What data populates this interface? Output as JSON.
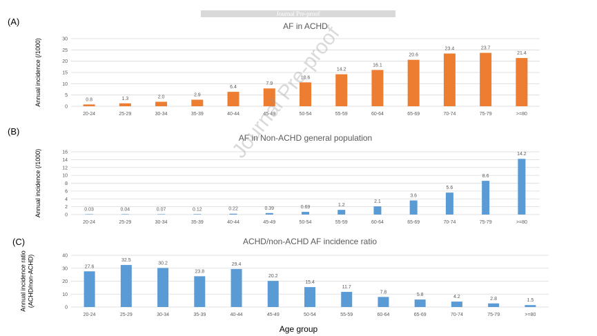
{
  "banner_text": "Journal Pre-proof",
  "watermark_text": "Journal Pre-proof",
  "x_axis_title": "Age group",
  "colors": {
    "orange": "#ed7d31",
    "blue": "#5b9bd5",
    "grid": "#d9d9d9",
    "text": "#595959"
  },
  "panels": [
    {
      "label": "(A)"
    },
    {
      "label": "(B)"
    },
    {
      "label": "(C)"
    }
  ],
  "chart_data": [
    {
      "type": "bar",
      "title": "AF in ACHD",
      "ylabel": "Annual incidence (/1000)",
      "ylim": [
        0,
        30
      ],
      "yticks": [
        0,
        5,
        10,
        15,
        20,
        25,
        30
      ],
      "grid": true,
      "color": "#ed7d31",
      "categories": [
        "20-24",
        "25-29",
        "30-34",
        "35-39",
        "40-44",
        "45-49",
        "50-54",
        "55-59",
        "60-64",
        "65-69",
        "70-74",
        "75-79",
        ">=80"
      ],
      "values": [
        0.8,
        1.3,
        2.0,
        2.9,
        6.4,
        7.9,
        10.6,
        14.2,
        16.1,
        20.6,
        23.4,
        23.7,
        21.4
      ],
      "labels": [
        "0.8",
        "1.3",
        "2.0",
        "2.9",
        "6.4",
        "7.9",
        "10.6",
        "14.2",
        "16.1",
        "20.6",
        "23.4",
        "23.7",
        "21.4"
      ]
    },
    {
      "type": "bar",
      "title": "AF in Non-ACHD general population",
      "ylabel": "Annual incidence (/1000)",
      "ylim": [
        0,
        16
      ],
      "yticks": [
        0,
        2,
        4,
        6,
        8,
        10,
        12,
        14,
        16
      ],
      "grid": true,
      "color": "#5b9bd5",
      "categories": [
        "20-24",
        "25-29",
        "30-34",
        "35-39",
        "40-44",
        "45-49",
        "50-54",
        "55-59",
        "60-64",
        "65-69",
        "70-74",
        "75-79",
        ">=80"
      ],
      "values": [
        0.03,
        0.04,
        0.07,
        0.12,
        0.22,
        0.39,
        0.69,
        1.2,
        2.1,
        3.6,
        5.6,
        8.6,
        14.2
      ],
      "labels": [
        "0.03",
        "0.04",
        "0.07",
        "0.12",
        "0.22",
        "0.39",
        "0.69",
        "1.2",
        "2.1",
        "3.6",
        "5.6",
        "8.6",
        "14.2"
      ]
    },
    {
      "type": "bar",
      "title": "ACHD/non-ACHD AF incidence ratio",
      "ylabel": "Annual incidence ratio (ACHD/non-ACHD)",
      "ylabel_lines": [
        "Annual incidence ratio",
        "(ACHD/non-ACHD)"
      ],
      "ylim": [
        0,
        40
      ],
      "yticks": [
        0,
        10,
        20,
        30,
        40
      ],
      "grid": true,
      "color": "#5b9bd5",
      "categories": [
        "20-24",
        "25-29",
        "30-34",
        "35-39",
        "40-44",
        "45-49",
        "50-54",
        "55-59",
        "60-64",
        "65-69",
        "70-74",
        "75-79",
        ">=80"
      ],
      "values": [
        27.6,
        32.5,
        30.2,
        23.8,
        29.4,
        20.2,
        15.4,
        11.7,
        7.8,
        5.8,
        4.2,
        2.8,
        1.5
      ],
      "labels": [
        "27.6",
        "32.5",
        "30.2",
        "23.8",
        "29.4",
        "20.2",
        "15.4",
        "11.7",
        "7.8",
        "5.8",
        "4.2",
        "2.8",
        "1.5"
      ]
    }
  ]
}
